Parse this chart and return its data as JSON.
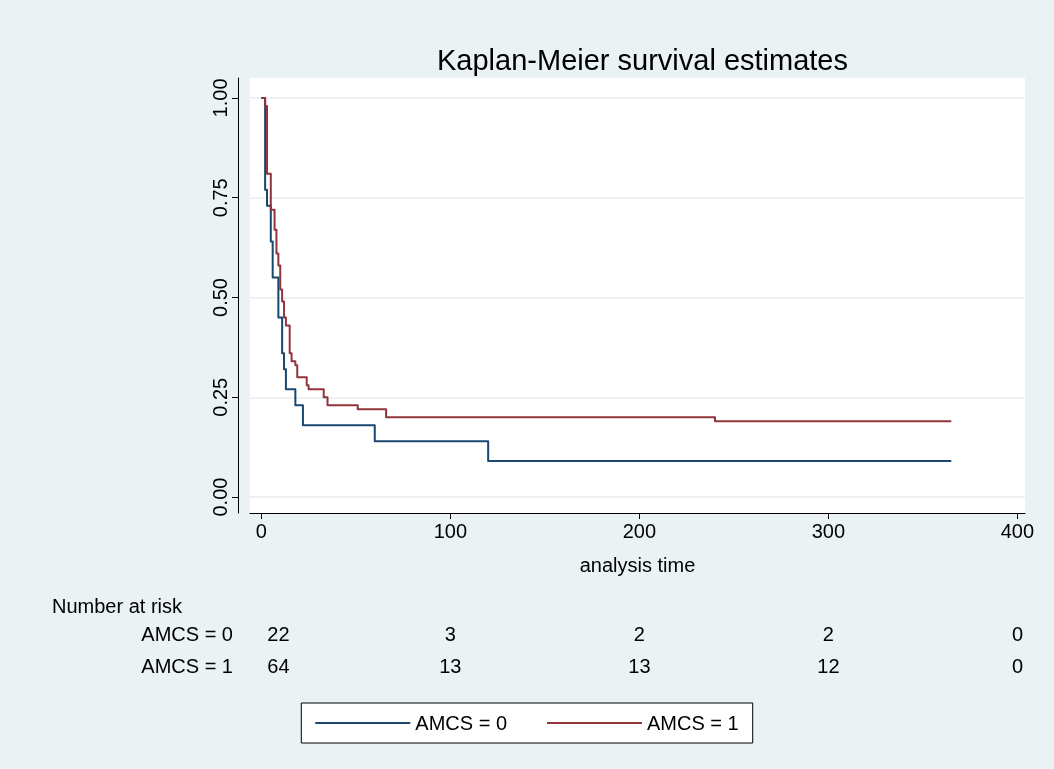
{
  "chart_data": {
    "type": "step",
    "title": "Kaplan-Meier survival estimates",
    "xlabel": "analysis time",
    "xlim": [
      -6,
      404
    ],
    "xticks": [
      0,
      100,
      200,
      300,
      400
    ],
    "ylim": [
      -0.04,
      1.05
    ],
    "yticks": [
      {
        "value": 0,
        "label": "0.00"
      },
      {
        "value": 0.25,
        "label": "0.25"
      },
      {
        "value": 0.5,
        "label": "0.50"
      },
      {
        "value": 0.75,
        "label": "0.75"
      },
      {
        "value": 1,
        "label": "1.00"
      }
    ],
    "grid": "y",
    "legend": "bottom",
    "marker": "none",
    "line_style": "solid",
    "series": [
      {
        "name": "AMCS = 0",
        "color": "#1a476f",
        "x": [
          0,
          2,
          3,
          5,
          6,
          9,
          11,
          12,
          13,
          18,
          22,
          60,
          120,
          365
        ],
        "values": [
          1,
          0.77,
          0.73,
          0.64,
          0.55,
          0.45,
          0.36,
          0.32,
          0.27,
          0.23,
          0.18,
          0.14,
          0.09,
          0.09
        ]
      },
      {
        "name": "AMCS = 1",
        "color": "#90353b",
        "x": [
          0,
          2,
          3,
          5,
          7,
          8,
          9,
          10,
          11,
          12,
          13,
          15,
          16,
          18,
          19,
          24,
          25,
          33,
          35,
          51,
          66,
          240,
          365
        ],
        "values": [
          1,
          0.98,
          0.81,
          0.72,
          0.67,
          0.61,
          0.58,
          0.52,
          0.49,
          0.45,
          0.43,
          0.36,
          0.34,
          0.33,
          0.3,
          0.28,
          0.27,
          0.25,
          0.23,
          0.22,
          0.2,
          0.19,
          0.19
        ]
      }
    ],
    "annotations": [
      "Number at risk",
      "AMCS = 0",
      "22",
      "3",
      "2",
      "2",
      "0",
      "AMCS = 1",
      "64",
      "13",
      "13",
      "12",
      "0"
    ]
  }
}
